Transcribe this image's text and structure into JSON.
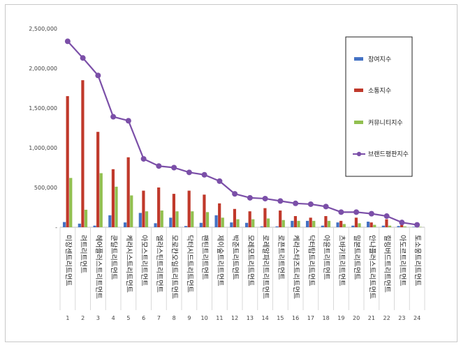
{
  "chart_data": {
    "type": "bar",
    "title": "",
    "xlabel": "",
    "ylabel": "",
    "ylim": [
      0,
      2500000
    ],
    "yticks": [
      0,
      500000,
      1000000,
      1500000,
      2000000,
      2500000
    ],
    "ytick_labels": [
      "-",
      "500,000",
      "1,000,000",
      "1,500,000",
      "2,000,000",
      "2,500,000"
    ],
    "grid": false,
    "legend_position": "top-right",
    "categories": [
      "미장센트리트먼트",
      "려트리트먼트",
      "헤어플러스트리트먼트",
      "쿤달트리트먼트",
      "케라시스트리트먼트",
      "아모스트리트먼트",
      "엘라스틴트리트먼트",
      "모로칸오일트리트먼트",
      "닥터시드트리트먼트",
      "팬틴트리트먼트",
      "제이숲트리트먼트",
      "박준트리트먼트",
      "모레모트리트먼트",
      "로레알파리트리트먼트",
      "로픈트리트먼트",
      "케라스타즈트리트먼트",
      "닥터탑트리트먼트",
      "아윤트리트먼트",
      "츠바키트리트먼트",
      "밀본트리트먼트",
      "안나플러스트리트먼트",
      "힐링버드트리트먼트",
      "아도르트리트먼트",
      "토소웅트리트먼트"
    ],
    "index_labels": [
      "1",
      "2",
      "3",
      "4",
      "5",
      "6",
      "7",
      "8",
      "9",
      "10",
      "11",
      "12",
      "13",
      "14",
      "15",
      "16",
      "17",
      "18",
      "19",
      "20",
      "21",
      "22",
      "23",
      "24"
    ],
    "series": [
      {
        "name": "참여지수",
        "kind": "bar",
        "color": "#4472c4",
        "values": [
          65000,
          45000,
          20000,
          150000,
          60000,
          180000,
          50000,
          120000,
          15000,
          55000,
          150000,
          60000,
          55000,
          10000,
          10000,
          80000,
          80000,
          20000,
          60000,
          20000,
          70000,
          20000,
          15000,
          5000
        ]
      },
      {
        "name": "소통지수",
        "kind": "bar",
        "color": "#c0392b",
        "values": [
          1650000,
          1850000,
          1200000,
          730000,
          880000,
          460000,
          500000,
          420000,
          460000,
          410000,
          300000,
          230000,
          200000,
          240000,
          210000,
          140000,
          120000,
          140000,
          80000,
          120000,
          60000,
          100000,
          30000,
          20000
        ]
      },
      {
        "name": "커뮤니티지수",
        "kind": "bar",
        "color": "#92c050",
        "values": [
          620000,
          220000,
          680000,
          510000,
          400000,
          200000,
          210000,
          200000,
          200000,
          190000,
          120000,
          100000,
          100000,
          110000,
          90000,
          80000,
          80000,
          80000,
          40000,
          50000,
          30000,
          20000,
          10000,
          5000
        ]
      },
      {
        "name": "브랜드평판지수",
        "kind": "line",
        "color": "#7b4fa8",
        "values": [
          2340000,
          2130000,
          1910000,
          1390000,
          1340000,
          860000,
          770000,
          750000,
          690000,
          660000,
          580000,
          420000,
          370000,
          360000,
          330000,
          300000,
          290000,
          260000,
          190000,
          190000,
          170000,
          140000,
          60000,
          30000
        ]
      }
    ]
  }
}
